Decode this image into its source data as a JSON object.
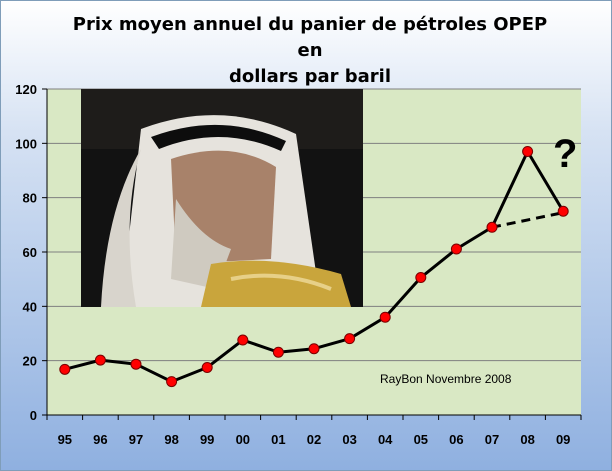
{
  "chart_data": {
    "type": "line",
    "title": "Prix moyen annuel du panier de pétroles OPEP en\ndollars par baril",
    "categories": [
      "95",
      "96",
      "97",
      "98",
      "99",
      "00",
      "01",
      "02",
      "03",
      "04",
      "05",
      "06",
      "07",
      "08",
      "09"
    ],
    "series": [
      {
        "values": [
          16.8,
          20.2,
          18.7,
          12.3,
          17.5,
          27.6,
          23.1,
          24.4,
          28.1,
          36.0,
          50.6,
          61.1,
          69.1,
          97.0,
          75.0
        ],
        "color": "#000000",
        "marker_color": "#ff0000"
      }
    ],
    "projection": {
      "from_category": "07",
      "to_category": "09",
      "from_value": 69.1,
      "to_value": 74.5,
      "style": "dashed"
    },
    "yticks": [
      "0",
      "20",
      "40",
      "60",
      "80",
      "100",
      "120"
    ],
    "ylim": [
      0,
      120
    ],
    "grid": true,
    "legend": false,
    "plot_background": "#d9e8c4",
    "annotations": {
      "credit": "RayBon Novembre 2008",
      "question_mark": "?"
    }
  },
  "photo": {
    "description": "portrait photo",
    "dominant_colors": [
      "#1a1a1a",
      "#e8e4dc",
      "#c9a53c"
    ]
  }
}
